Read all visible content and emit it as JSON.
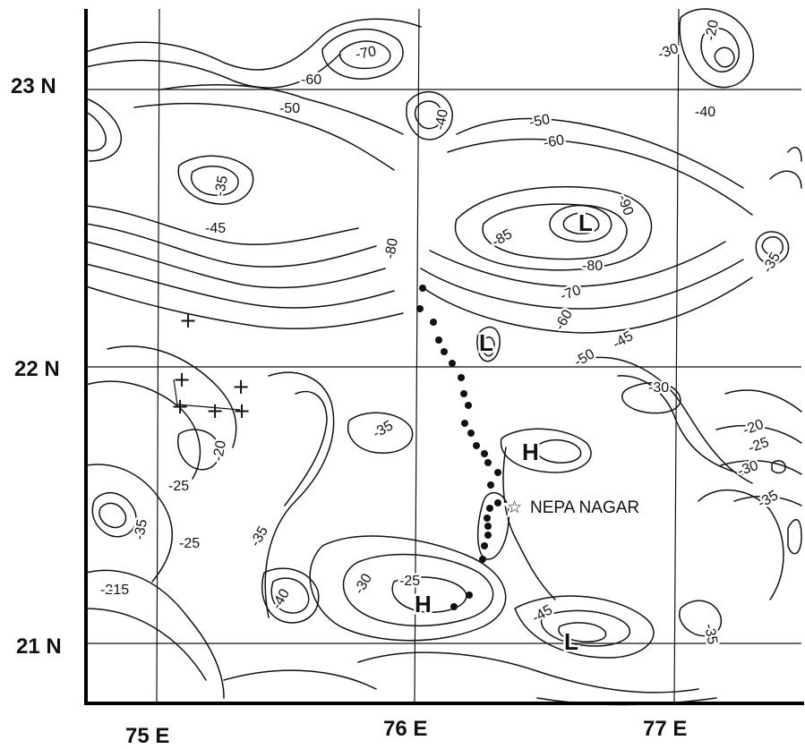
{
  "map": {
    "latitude_labels": [
      "23 N",
      "22 N",
      "21 N"
    ],
    "longitude_labels": [
      "75 E",
      "76 E",
      "77 E"
    ],
    "place_name": "NEPA NAGAR",
    "place_marker": "☆",
    "contour_labels": [
      "-70",
      "-60",
      "-50",
      "-40",
      "-20",
      "-30",
      "-40",
      "-50",
      "-60",
      "-35",
      "-45",
      "-80",
      "-85",
      "-90",
      "-80",
      "-70",
      "-60",
      "-45",
      "-50",
      "-35",
      "-30",
      "-35",
      "-20",
      "-25",
      "-35",
      "-25",
      "-35",
      "-25",
      "-15",
      "-40",
      "-30",
      "-25",
      "-45",
      "-35",
      "-20",
      "-25",
      "-30",
      "-35"
    ],
    "high_low_markers": [
      "L",
      "L",
      "L",
      "H",
      "H"
    ],
    "plus_marker": "+",
    "colors": {
      "line": "#111111",
      "background": "#ffffff"
    }
  }
}
